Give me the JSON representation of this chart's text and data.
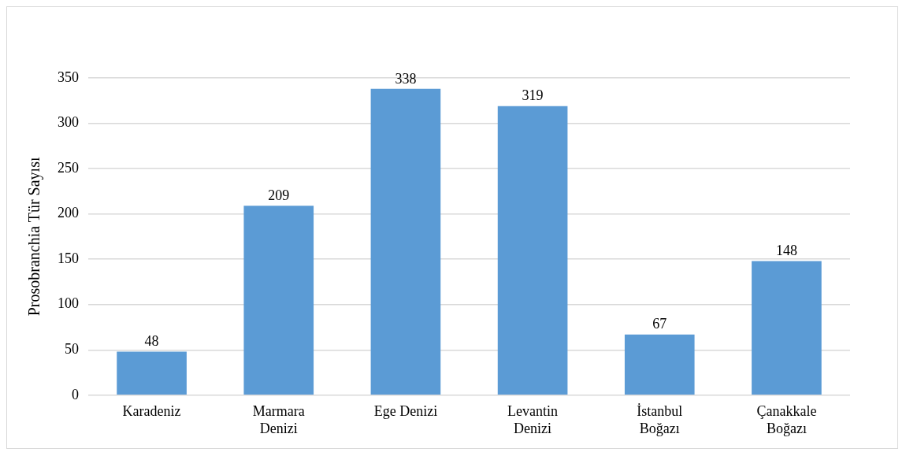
{
  "chart_data": {
    "type": "bar",
    "ylabel": "Prosobranchia Tür Sayısı",
    "categories": [
      "Karadeniz",
      "Marmara Denizi",
      "Ege Denizi",
      "Levantin Denizi",
      "İstanbul Boğazı",
      "Çanakkale Boğazı"
    ],
    "values": [
      48,
      209,
      338,
      319,
      67,
      148
    ],
    "color": "#5b9bd5",
    "ylim": [
      0,
      350
    ],
    "yticks": [
      0,
      50,
      100,
      150,
      200,
      250,
      300,
      350
    ],
    "grid": "y",
    "data_labels": true
  }
}
